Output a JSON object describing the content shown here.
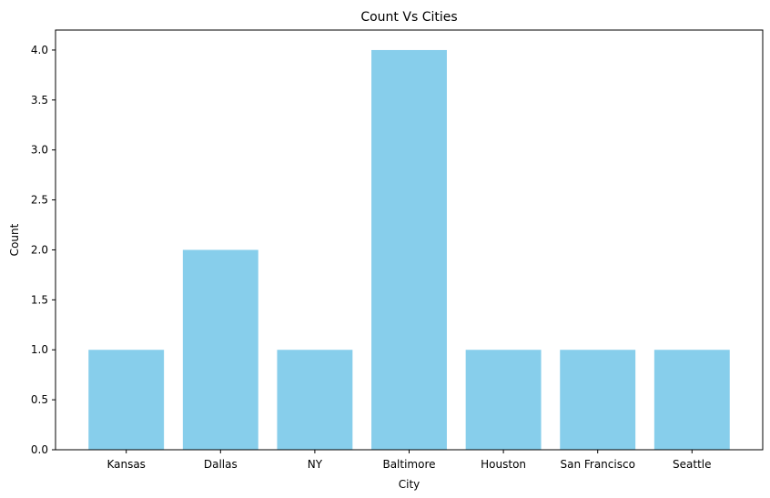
{
  "chart_data": {
    "type": "bar",
    "title": "Count Vs Cities",
    "xlabel": "City",
    "ylabel": "Count",
    "categories": [
      "Kansas",
      "Dallas",
      "NY",
      "Baltimore",
      "Houston",
      "San Francisco",
      "Seattle"
    ],
    "values": [
      1,
      2,
      1,
      4,
      1,
      1,
      1
    ],
    "ylim": [
      0,
      4.2
    ],
    "yticks": [
      0,
      0.5,
      1,
      1.5,
      2,
      2.5,
      3,
      3.5,
      4
    ],
    "ytick_labels": [
      "0.0",
      "0.5",
      "1.0",
      "1.5",
      "2.0",
      "2.5",
      "3.0",
      "3.5",
      "4.0"
    ],
    "bar_color": "#87ceeb",
    "grid": false,
    "legend": "none"
  }
}
